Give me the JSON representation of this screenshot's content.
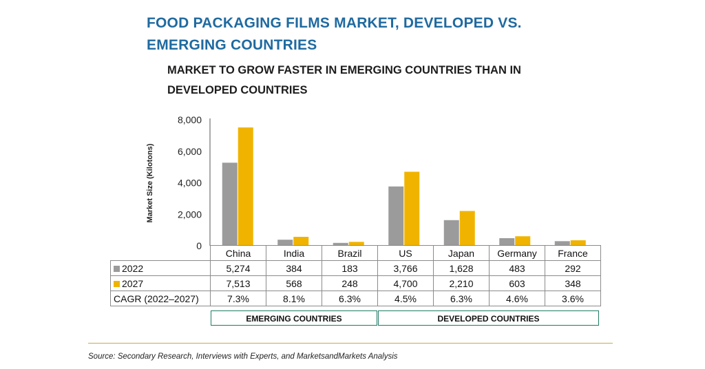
{
  "chart_data": {
    "type": "bar",
    "title": "FOOD PACKAGING FILMS MARKET, DEVELOPED VS. EMERGING COUNTRIES",
    "subtitle": "MARKET TO GROW FASTER IN EMERGING COUNTRIES THAN IN DEVELOPED COUNTRIES",
    "ylabel": "Market Size (Kilotons)",
    "xlabel": "",
    "ylim": [
      0,
      8000
    ],
    "yticks": [
      "0",
      "2,000",
      "4,000",
      "6,000",
      "8,000"
    ],
    "categories": [
      "China",
      "India",
      "Brazil",
      "US",
      "Japan",
      "Germany",
      "France"
    ],
    "series": [
      {
        "name": "2022",
        "color": "#9b9b9b",
        "values": [
          5274,
          384,
          183,
          3766,
          1628,
          483,
          292
        ],
        "labels": [
          "5,274",
          "384",
          "183",
          "3,766",
          "1,628",
          "483",
          "292"
        ]
      },
      {
        "name": "2027",
        "color": "#f0b400",
        "values": [
          7513,
          568,
          248,
          4700,
          2210,
          603,
          348
        ],
        "labels": [
          "7,513",
          "568",
          "248",
          "4,700",
          "2,210",
          "603",
          "348"
        ]
      }
    ],
    "cagr_label": "CAGR (2022–2027)",
    "cagr": [
      "7.3%",
      "8.1%",
      "6.3%",
      "4.5%",
      "6.3%",
      "4.6%",
      "3.6%"
    ],
    "groups": [
      {
        "label": "EMERGING COUNTRIES",
        "categories": [
          "China",
          "India",
          "Brazil"
        ]
      },
      {
        "label": "DEVELOPED COUNTRIES",
        "categories": [
          "US",
          "Japan",
          "Germany",
          "France"
        ]
      }
    ],
    "grid": false
  },
  "source": "Source: Secondary Research, Interviews with Experts, and MarketsandMarkets Analysis"
}
